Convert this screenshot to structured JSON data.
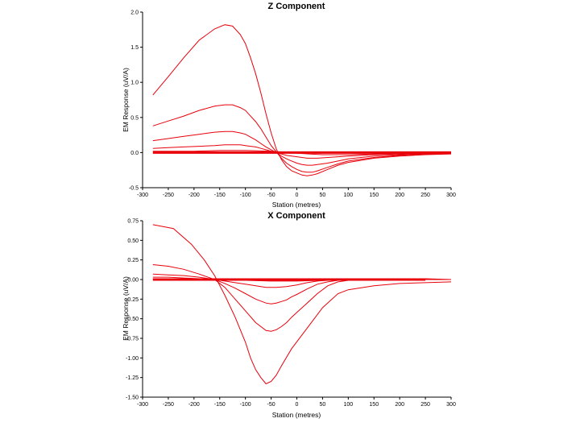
{
  "series_color": "#e8000b",
  "chart_data": [
    {
      "type": "line",
      "title": "Z Component",
      "xlabel": "Station (metres)",
      "ylabel": "EM Response (uV/A)",
      "xlim": [
        -300,
        300
      ],
      "ylim": [
        -0.5,
        2.0
      ],
      "xticks": [
        -300,
        -250,
        -200,
        -150,
        -100,
        -50,
        0,
        50,
        100,
        150,
        200,
        250,
        300
      ],
      "yticks": [
        -0.5,
        0.0,
        0.5,
        1.0,
        1.5,
        2.0
      ],
      "xtick_labels": [
        "-300",
        "-250",
        "-200",
        "-150",
        "-100",
        "-50",
        "0",
        "50",
        "100",
        "150",
        "200",
        "250",
        "300"
      ],
      "ytick_labels": [
        "-0.5",
        "0.0",
        "0.5",
        "1.0",
        "1.5",
        "2.0"
      ],
      "grid": false,
      "series": [
        {
          "x": [
            -280,
            -250,
            -220,
            -190,
            -160,
            -140,
            -125,
            -110,
            -100,
            -90,
            -80,
            -70,
            -60,
            -50,
            -40,
            -30,
            -20,
            -10,
            0,
            10,
            20,
            30,
            40,
            60,
            80,
            100,
            150,
            200,
            250,
            300
          ],
          "y": [
            0.82,
            1.08,
            1.35,
            1.6,
            1.76,
            1.82,
            1.8,
            1.68,
            1.55,
            1.35,
            1.12,
            0.85,
            0.55,
            0.28,
            0.05,
            -0.1,
            -0.2,
            -0.26,
            -0.29,
            -0.32,
            -0.33,
            -0.32,
            -0.3,
            -0.24,
            -0.18,
            -0.14,
            -0.08,
            -0.05,
            -0.03,
            -0.02
          ]
        },
        {
          "x": [
            -280,
            -250,
            -220,
            -190,
            -160,
            -140,
            -125,
            -110,
            -100,
            -90,
            -80,
            -70,
            -60,
            -50,
            -40,
            -30,
            -20,
            -10,
            0,
            10,
            20,
            30,
            40,
            60,
            80,
            100,
            150,
            200,
            250,
            300
          ],
          "y": [
            0.38,
            0.45,
            0.52,
            0.6,
            0.66,
            0.68,
            0.68,
            0.64,
            0.6,
            0.52,
            0.44,
            0.34,
            0.22,
            0.1,
            0.01,
            -0.08,
            -0.15,
            -0.2,
            -0.24,
            -0.27,
            -0.28,
            -0.28,
            -0.26,
            -0.21,
            -0.16,
            -0.12,
            -0.07,
            -0.04,
            -0.02,
            -0.01
          ]
        },
        {
          "x": [
            -280,
            -250,
            -220,
            -190,
            -160,
            -140,
            -125,
            -110,
            -100,
            -90,
            -80,
            -70,
            -60,
            -50,
            -40,
            -30,
            -20,
            -10,
            0,
            10,
            20,
            30,
            40,
            60,
            80,
            100,
            150,
            200,
            250,
            300
          ],
          "y": [
            0.17,
            0.2,
            0.23,
            0.26,
            0.29,
            0.3,
            0.3,
            0.28,
            0.26,
            0.22,
            0.18,
            0.13,
            0.08,
            0.04,
            0.0,
            -0.05,
            -0.09,
            -0.12,
            -0.15,
            -0.17,
            -0.18,
            -0.18,
            -0.17,
            -0.15,
            -0.12,
            -0.09,
            -0.05,
            -0.03,
            -0.02,
            -0.01
          ]
        },
        {
          "x": [
            -280,
            -250,
            -220,
            -190,
            -160,
            -140,
            -125,
            -110,
            -100,
            -90,
            -80,
            -70,
            -60,
            -50,
            -40,
            -30,
            -20,
            -10,
            0,
            10,
            20,
            30,
            40,
            60,
            80,
            100,
            150,
            200,
            250,
            300
          ],
          "y": [
            0.06,
            0.07,
            0.08,
            0.09,
            0.1,
            0.11,
            0.11,
            0.11,
            0.1,
            0.09,
            0.08,
            0.06,
            0.04,
            0.02,
            0.0,
            -0.02,
            -0.04,
            -0.05,
            -0.06,
            -0.07,
            -0.08,
            -0.08,
            -0.08,
            -0.07,
            -0.06,
            -0.05,
            -0.03,
            -0.02,
            -0.01,
            -0.01
          ]
        },
        {
          "x": [
            -280,
            -200,
            -150,
            -100,
            -50,
            0,
            50,
            100,
            150,
            200,
            250,
            300
          ],
          "y": [
            0.02,
            0.02,
            0.03,
            0.03,
            0.02,
            -0.01,
            -0.03,
            -0.03,
            -0.02,
            -0.01,
            -0.01,
            0.0
          ]
        },
        {
          "x": [
            -280,
            -200,
            -100,
            0,
            100,
            200,
            300
          ],
          "y": [
            0.0,
            0.0,
            0.0,
            0.0,
            0.0,
            0.0,
            0.0
          ]
        }
      ]
    },
    {
      "type": "line",
      "title": "X Component",
      "xlabel": "Station (metres)",
      "ylabel": "EM Response (uV/A)",
      "xlim": [
        -300,
        300
      ],
      "ylim": [
        -1.5,
        0.75
      ],
      "xticks": [
        -300,
        -250,
        -200,
        -150,
        -100,
        -50,
        0,
        50,
        100,
        150,
        200,
        250,
        300
      ],
      "yticks": [
        -1.5,
        -1.25,
        -1.0,
        -0.75,
        -0.5,
        -0.25,
        0.0,
        0.25,
        0.5,
        0.75
      ],
      "xtick_labels": [
        "-300",
        "-250",
        "-200",
        "-150",
        "-100",
        "-50",
        "0",
        "50",
        "100",
        "150",
        "200",
        "250",
        "300"
      ],
      "ytick_labels": [
        "-1.50",
        "-1.25",
        "-1.00",
        "-0.75",
        "-0.50",
        "-0.25",
        "0.00",
        "0.25",
        "0.50",
        "0.75"
      ],
      "grid": false,
      "series": [
        {
          "x": [
            -280,
            -240,
            -205,
            -180,
            -160,
            -140,
            -120,
            -100,
            -90,
            -80,
            -70,
            -60,
            -50,
            -40,
            -30,
            -10,
            20,
            50,
            80,
            100,
            150,
            200,
            250,
            300
          ],
          "y": [
            0.7,
            0.65,
            0.45,
            0.25,
            0.05,
            -0.2,
            -0.48,
            -0.8,
            -1.0,
            -1.15,
            -1.25,
            -1.33,
            -1.3,
            -1.22,
            -1.1,
            -0.88,
            -0.62,
            -0.36,
            -0.18,
            -0.13,
            -0.08,
            -0.05,
            -0.04,
            -0.03
          ]
        },
        {
          "x": [
            -280,
            -250,
            -220,
            -190,
            -160,
            -140,
            -120,
            -100,
            -80,
            -60,
            -50,
            -40,
            -30,
            -20,
            -10,
            0,
            20,
            40,
            60,
            80,
            100,
            150,
            200,
            250,
            300
          ],
          "y": [
            0.19,
            0.17,
            0.13,
            0.07,
            0.0,
            -0.1,
            -0.25,
            -0.4,
            -0.55,
            -0.65,
            -0.66,
            -0.64,
            -0.6,
            -0.55,
            -0.48,
            -0.42,
            -0.3,
            -0.18,
            -0.08,
            -0.03,
            -0.01,
            0.0,
            0.0,
            0.0,
            0.0
          ]
        },
        {
          "x": [
            -280,
            -250,
            -220,
            -190,
            -160,
            -140,
            -120,
            -100,
            -80,
            -60,
            -50,
            -40,
            -30,
            -20,
            -10,
            0,
            20,
            40,
            60,
            80,
            100,
            150,
            200,
            250,
            300
          ],
          "y": [
            0.07,
            0.06,
            0.05,
            0.03,
            0.0,
            -0.05,
            -0.11,
            -0.18,
            -0.25,
            -0.3,
            -0.31,
            -0.3,
            -0.28,
            -0.26,
            -0.22,
            -0.19,
            -0.12,
            -0.06,
            -0.03,
            -0.01,
            0.0,
            0.0,
            0.0,
            0.0,
            0.0
          ]
        },
        {
          "x": [
            -280,
            -250,
            -220,
            -190,
            -160,
            -140,
            -120,
            -100,
            -80,
            -60,
            -50,
            -40,
            -20,
            0,
            20,
            40,
            60,
            80,
            100,
            150,
            200,
            250,
            300
          ],
          "y": [
            0.03,
            0.03,
            0.02,
            0.01,
            0.0,
            -0.02,
            -0.04,
            -0.06,
            -0.08,
            -0.1,
            -0.1,
            -0.1,
            -0.09,
            -0.07,
            -0.04,
            -0.02,
            -0.01,
            0.0,
            0.0,
            0.0,
            0.0,
            0.0,
            0.0
          ]
        },
        {
          "x": [
            -280,
            -200,
            -150,
            -100,
            -50,
            0,
            50,
            100,
            150,
            200,
            250,
            300
          ],
          "y": [
            0.01,
            0.01,
            0.0,
            -0.01,
            -0.02,
            -0.02,
            -0.01,
            0.0,
            0.01,
            0.01,
            0.01,
            0.0
          ]
        },
        {
          "x": [
            -280,
            -200,
            -100,
            0,
            100,
            200,
            250
          ],
          "y": [
            0.0,
            0.0,
            0.0,
            0.0,
            0.0,
            0.0,
            0.0
          ]
        }
      ]
    }
  ]
}
